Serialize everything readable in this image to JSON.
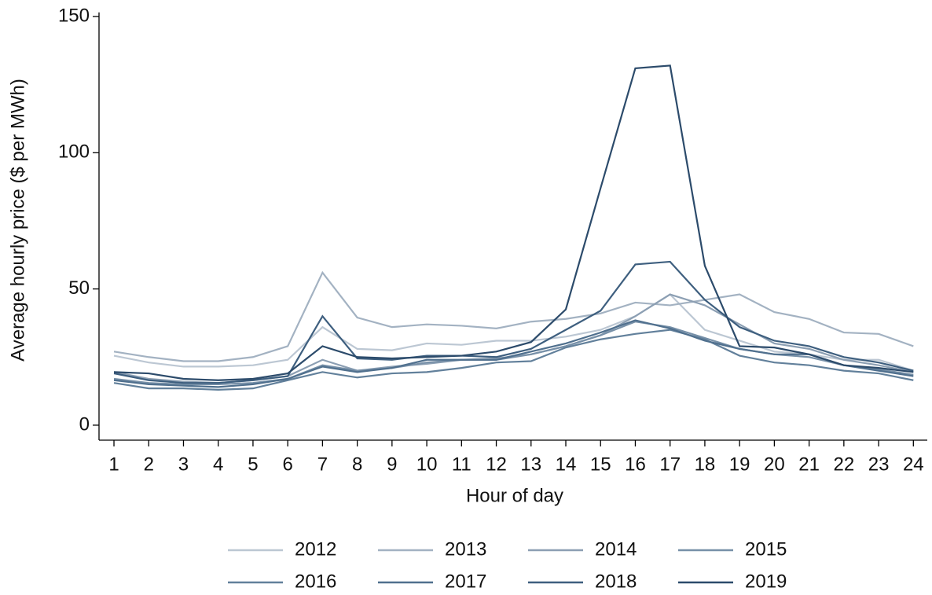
{
  "chart_data": {
    "type": "line",
    "y_label": "Average hourly price ($ per MWh)",
    "x_label": "Hour of day",
    "x": [
      1,
      2,
      3,
      4,
      5,
      6,
      7,
      8,
      9,
      10,
      11,
      12,
      13,
      14,
      15,
      16,
      17,
      18,
      19,
      20,
      21,
      22,
      23,
      24
    ],
    "xlim": [
      0.57,
      24.4
    ],
    "xticks": [
      1,
      2,
      3,
      4,
      5,
      6,
      7,
      8,
      9,
      10,
      11,
      12,
      13,
      14,
      15,
      16,
      17,
      18,
      19,
      20,
      21,
      22,
      23,
      24
    ],
    "ylim": [
      -5.5,
      151.5
    ],
    "yticks": [
      0,
      50,
      100,
      150
    ],
    "series": [
      {
        "name": "2012",
        "color": "#bcc7d3",
        "values": [
          25.5,
          23,
          21.5,
          21.5,
          22,
          24,
          36,
          28,
          27.5,
          30,
          29.5,
          31,
          31,
          32.5,
          35,
          40,
          48,
          35,
          31,
          27,
          26,
          24,
          24,
          20
        ]
      },
      {
        "name": "2013",
        "color": "#a3b2c2",
        "values": [
          27,
          25,
          23.5,
          23.5,
          25,
          29,
          56,
          39.5,
          36,
          37,
          36.5,
          35.5,
          38,
          39,
          41,
          45,
          44,
          46,
          48,
          41.5,
          39,
          34,
          33.5,
          29
        ]
      },
      {
        "name": "2014",
        "color": "#8c9fb3",
        "values": [
          19.5,
          17,
          16,
          15.5,
          16.5,
          18,
          24,
          20,
          21.5,
          22.5,
          24,
          24.5,
          26,
          29,
          33,
          40,
          48,
          44,
          37,
          30,
          28,
          24,
          22,
          19.5
        ]
      },
      {
        "name": "2015",
        "color": "#7790a8",
        "values": [
          17,
          15.5,
          15,
          15,
          15.5,
          17,
          22,
          20,
          21,
          23,
          24,
          24,
          26,
          29,
          33,
          38,
          36,
          32,
          28,
          26,
          25,
          22,
          20.5,
          18.5
        ]
      },
      {
        "name": "2016",
        "color": "#62809b",
        "values": [
          15.5,
          13.5,
          13.5,
          13,
          13.5,
          16.5,
          19.5,
          17.5,
          19,
          19.5,
          21,
          23,
          23.5,
          28.5,
          31.5,
          33.5,
          35,
          31.5,
          25.5,
          23,
          22,
          20,
          19,
          16.5
        ]
      },
      {
        "name": "2017",
        "color": "#50708e",
        "values": [
          16.5,
          15,
          14.5,
          14,
          15,
          17,
          21.5,
          19.5,
          21,
          24,
          24,
          24,
          27,
          30,
          34,
          38.5,
          35.5,
          31,
          28,
          26,
          26,
          22,
          20,
          18
        ]
      },
      {
        "name": "2018",
        "color": "#3e5f7f",
        "values": [
          19,
          16.5,
          15.5,
          15.5,
          16.5,
          18,
          40,
          24.5,
          24,
          25.5,
          25.5,
          25,
          28,
          35,
          42,
          59,
          60,
          46,
          36,
          31,
          29,
          25,
          23,
          20
        ]
      },
      {
        "name": "2019",
        "color": "#2c4b6b",
        "values": [
          19.5,
          19,
          17,
          16.5,
          17,
          19,
          29,
          25,
          24.5,
          25,
          25.5,
          27,
          30.5,
          42.5,
          87,
          131,
          132,
          58.5,
          29,
          28.5,
          26,
          22,
          21,
          19.5
        ]
      }
    ]
  }
}
